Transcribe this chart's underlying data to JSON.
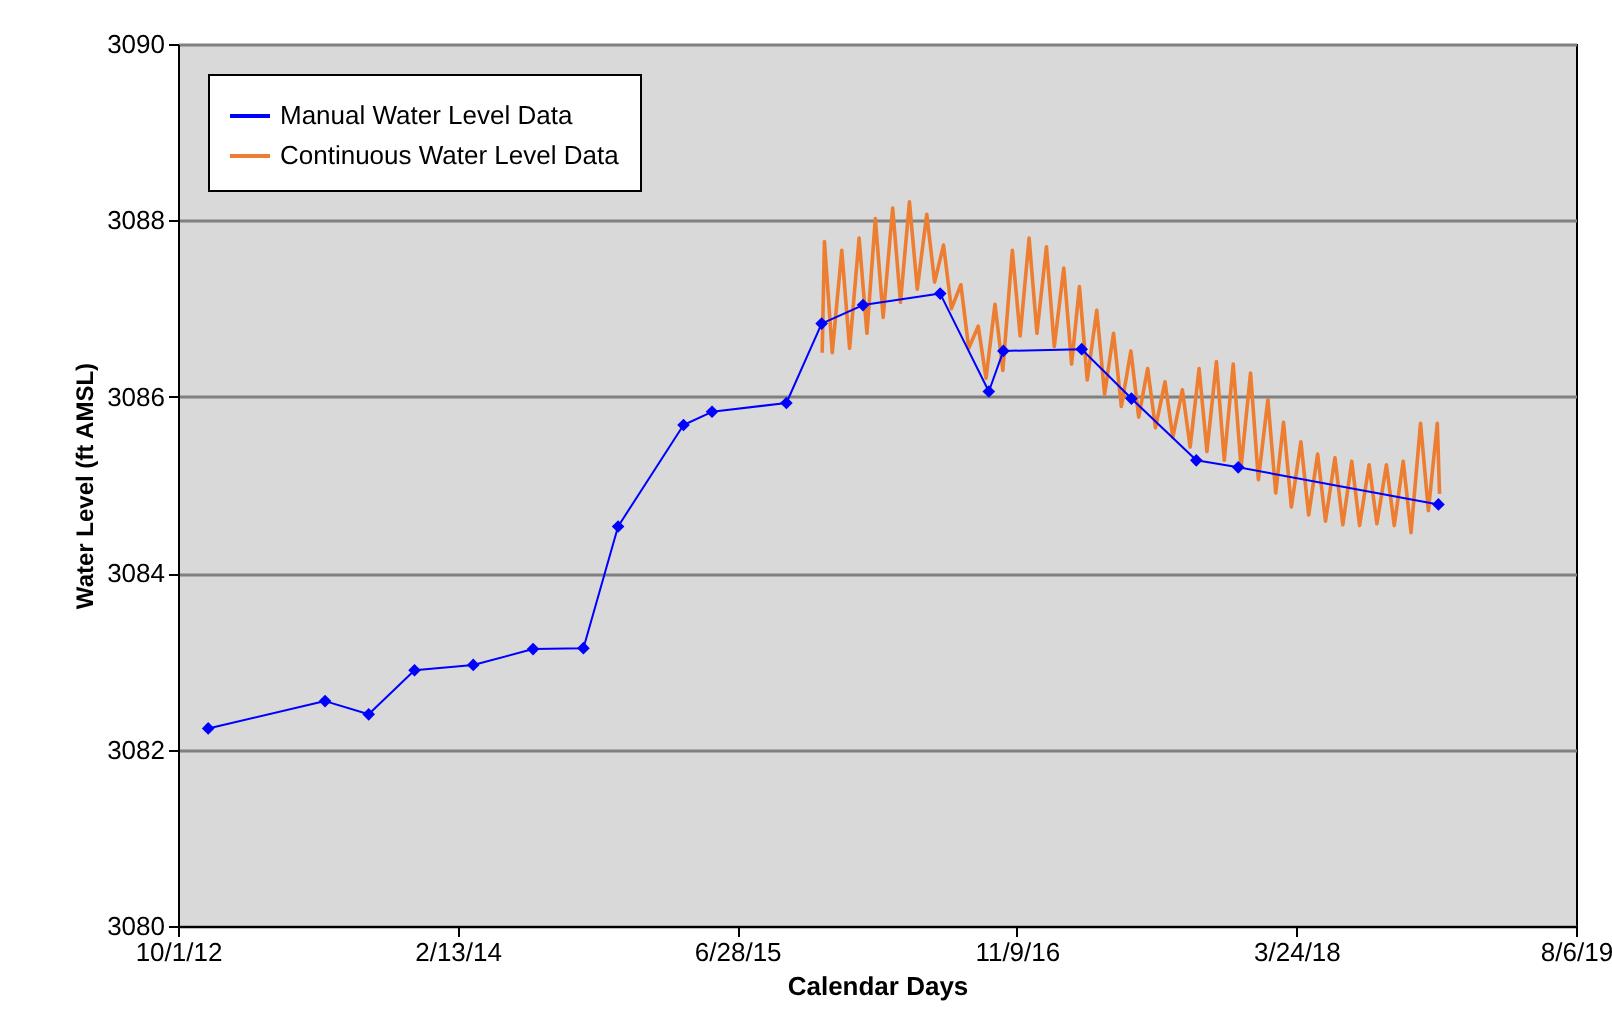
{
  "chart_data": {
    "type": "line",
    "xlabel": "Calendar Days",
    "ylabel": "Water Level (ft AMSL)",
    "xlim": [
      "2012-10-01",
      "2019-08-06"
    ],
    "xticks": [
      {
        "value": "2012-10-01",
        "label": "10/1/12"
      },
      {
        "value": "2014-02-13",
        "label": "2/13/14"
      },
      {
        "value": "2015-06-28",
        "label": "6/28/15"
      },
      {
        "value": "2016-11-09",
        "label": "11/9/16"
      },
      {
        "value": "2018-03-24",
        "label": "3/24/18"
      },
      {
        "value": "2019-08-06",
        "label": "8/6/19"
      }
    ],
    "ylim": [
      3080,
      3090
    ],
    "yticks": [
      3080,
      3082,
      3084,
      3086,
      3088,
      3090
    ],
    "grid": "y",
    "legend": "top left",
    "series": [
      {
        "name": "Continuous Water Level Data",
        "color": "#ed7d31",
        "marker": "none",
        "x": [
          "2015-11-27",
          "2015-12-01",
          "2015-12-15",
          "2016-01-01",
          "2016-01-15",
          "2016-02-01",
          "2016-02-15",
          "2016-03-01",
          "2016-03-15",
          "2016-04-01",
          "2016-04-15",
          "2016-05-01",
          "2016-05-15",
          "2016-06-01",
          "2016-06-15",
          "2016-07-01",
          "2016-07-15",
          "2016-08-01",
          "2016-08-15",
          "2016-09-01",
          "2016-09-15",
          "2016-10-01",
          "2016-10-15",
          "2016-11-01",
          "2016-11-15",
          "2016-12-01",
          "2016-12-15",
          "2017-01-01",
          "2017-01-15",
          "2017-02-01",
          "2017-02-15",
          "2017-03-01",
          "2017-03-15",
          "2017-04-01",
          "2017-04-15",
          "2017-05-01",
          "2017-05-15",
          "2017-06-01",
          "2017-06-15",
          "2017-07-01",
          "2017-07-15",
          "2017-08-01",
          "2017-08-15",
          "2017-09-01",
          "2017-09-15",
          "2017-10-01",
          "2017-10-15",
          "2017-11-01",
          "2017-11-15",
          "2017-12-01",
          "2017-12-15",
          "2018-01-01",
          "2018-01-15",
          "2018-02-01",
          "2018-02-15",
          "2018-03-01",
          "2018-03-15",
          "2018-04-01",
          "2018-04-15",
          "2018-05-01",
          "2018-05-15",
          "2018-06-01",
          "2018-06-15",
          "2018-07-01",
          "2018-07-15",
          "2018-08-01",
          "2018-08-15",
          "2018-09-01",
          "2018-09-15",
          "2018-10-01",
          "2018-10-15",
          "2018-11-01",
          "2018-11-15",
          "2018-12-01",
          "2018-12-05"
        ],
        "values": [
          3086.5,
          3087.76,
          3086.5,
          3087.66,
          3086.55,
          3087.8,
          3086.72,
          3088.02,
          3086.9,
          3088.14,
          3087.07,
          3088.21,
          3087.22,
          3088.07,
          3087.3,
          3087.72,
          3087.0,
          3087.27,
          3086.55,
          3086.8,
          3086.21,
          3087.05,
          3086.3,
          3087.66,
          3086.69,
          3087.8,
          3086.72,
          3087.7,
          3086.57,
          3087.46,
          3086.37,
          3087.25,
          3086.19,
          3086.98,
          3086.03,
          3086.72,
          3085.89,
          3086.52,
          3085.77,
          3086.32,
          3085.65,
          3086.17,
          3085.54,
          3086.08,
          3085.43,
          3086.32,
          3085.38,
          3086.4,
          3085.28,
          3086.37,
          3085.2,
          3086.27,
          3085.06,
          3085.97,
          3084.91,
          3085.71,
          3084.75,
          3085.49,
          3084.66,
          3085.35,
          3084.59,
          3085.31,
          3084.55,
          3085.27,
          3084.54,
          3085.23,
          3084.56,
          3085.23,
          3084.54,
          3085.27,
          3084.46,
          3085.7,
          3084.71,
          3085.7,
          3084.9
        ]
      },
      {
        "name": "Manual Water Level Data",
        "color": "#0000ff",
        "marker": "diamond",
        "x": [
          "2012-11-24",
          "2013-06-21",
          "2013-09-07",
          "2013-11-28",
          "2014-03-13",
          "2014-06-28",
          "2014-09-26",
          "2014-11-27",
          "2015-03-24",
          "2015-05-14",
          "2015-09-24",
          "2015-11-26",
          "2016-02-08",
          "2016-06-25",
          "2016-09-20",
          "2016-10-16",
          "2017-03-05",
          "2017-06-02",
          "2017-09-26",
          "2017-12-10",
          "2018-12-03"
        ],
        "values": [
          3082.24,
          3082.55,
          3082.4,
          3082.9,
          3082.96,
          3083.14,
          3083.15,
          3084.53,
          3085.68,
          3085.83,
          3085.93,
          3086.83,
          3087.04,
          3087.17,
          3086.06,
          3086.52,
          3086.54,
          3085.98,
          3085.28,
          3085.2,
          3084.78
        ]
      }
    ]
  }
}
